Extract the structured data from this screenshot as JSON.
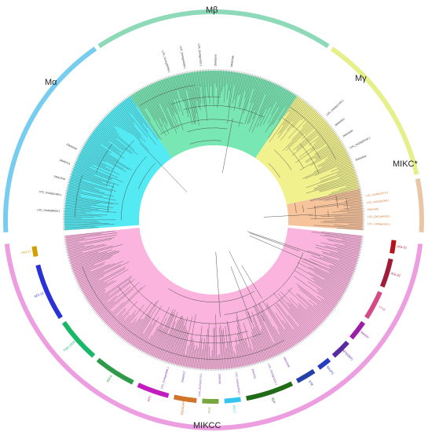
{
  "groups": [
    {
      "label": "Mα",
      "color": "#76cdf0",
      "sector": "#35e6f2"
    },
    {
      "label": "Mβ",
      "color": "#8ed9b8",
      "sector": "#62e3a6"
    },
    {
      "label": "Mγ",
      "color": "#e6f08a",
      "sector": "#eef07a"
    },
    {
      "label": "MIKC*",
      "color": "#e8c7a6",
      "sector": "#f6b98a"
    },
    {
      "label": "MIKCC",
      "color": "#ec9ee0",
      "sector": "#f9a7d7"
    }
  ],
  "subclades": [
    {
      "label": "AGL15",
      "color": "#b5121b"
    },
    {
      "label": "AGL17",
      "color": "#d1a000"
    },
    {
      "label": "AGL12",
      "color": "#2a31d6"
    },
    {
      "label": "TM3 (SOC1)",
      "color": "#18b86a"
    },
    {
      "label": "AGL6",
      "color": "#2e9a4a"
    },
    {
      "label": "AP1",
      "color": "#c21bbf"
    },
    {
      "label": "SQUA/AP1",
      "color": "#d1742a"
    },
    {
      "label": "FLC",
      "color": "#7aa73d"
    },
    {
      "label": "AGL2",
      "color": "#35c5ee"
    },
    {
      "label": "SEP",
      "color": "#1f6b17"
    },
    {
      "label": "STK",
      "color": "#2440a8"
    },
    {
      "label": "Glo(PI)",
      "color": "#283cbf"
    },
    {
      "label": "AP3(DEF)",
      "color": "#5a2aa0"
    },
    {
      "label": "Bsister",
      "color": "#9c1ea6"
    },
    {
      "label": "TT16",
      "color": "#d34a86"
    },
    {
      "label": "AGL32",
      "color": "#a01d3a"
    }
  ],
  "leaf_labels": {
    "mb": [
      "LOC_Os11g38780.1",
      "LOC_Os01g66290.1",
      "LOC_Os03g03100.1",
      "ZMADS44",
      "ZMADS64"
    ],
    "mc": [
      "LOC_Os06g11330.1",
      "ZMADS51",
      "ZMADS49",
      "LOC_Os04g49150.1",
      "ZMADS63"
    ],
    "ma": [
      "LOC_Os08g38590.1",
      "LOC_Os02g01360.1",
      "ZMADS43",
      "ZMADS41",
      "ZMADS40"
    ],
    "mk": [
      "LOC_Os06g11970.1",
      "LOC_Os02g52340.1",
      "ZMADS62",
      "LOC_Os01g66030.1",
      "LOC_Os08g41950.1"
    ],
    "mic": [
      "ZMADS26",
      "LOC_Os03g11614.1",
      "ZMADS2",
      "LOC_Os01g10504.1",
      "ZMADS8",
      "LOC_Os07g41370.1",
      "ZMADS27",
      "LOC_Os09g32948.1"
    ]
  }
}
